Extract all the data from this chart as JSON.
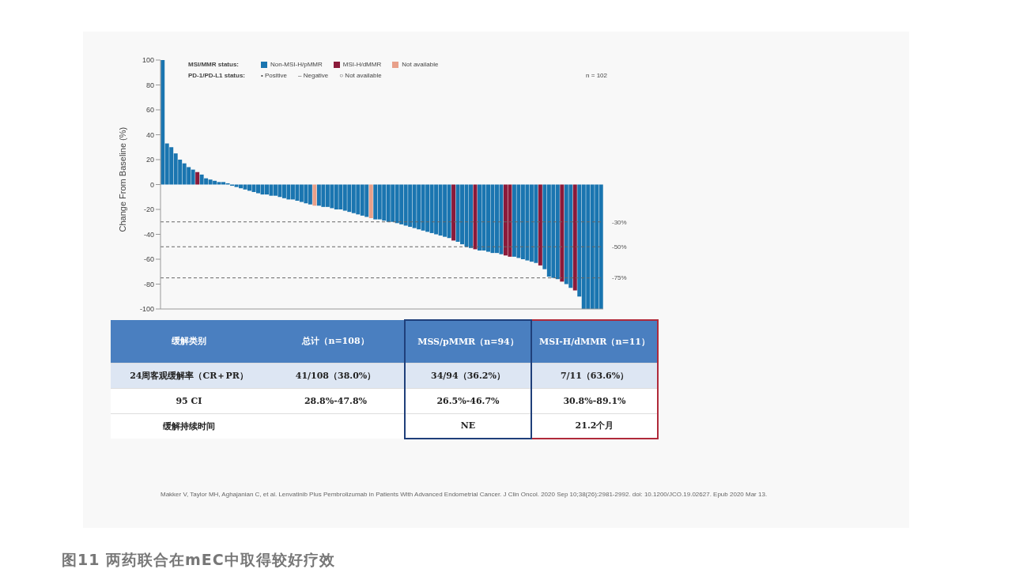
{
  "chart_data": [
    {
      "type": "bar",
      "ylabel": "Change From Baseline (%)",
      "legend_title": "MSI/MMR status:",
      "legend": "top",
      "stacked": true,
      "tick_labels": "y",
      "ylim": [
        -100,
        100
      ],
      "yticks": [
        -100,
        -80,
        -60,
        -40,
        -20,
        0,
        20,
        40,
        60,
        80,
        100
      ],
      "categories": [
        null,
        null,
        null,
        null,
        null,
        null,
        null,
        null,
        null,
        null,
        null,
        null,
        null,
        null,
        null,
        null,
        null,
        null,
        null,
        null,
        null,
        null,
        null,
        null,
        null,
        null,
        null,
        null,
        null,
        null,
        null,
        null,
        null,
        null,
        null,
        null,
        null,
        null,
        null,
        null,
        null,
        null,
        null,
        null,
        null,
        null,
        null,
        null,
        null,
        null,
        null,
        null,
        null,
        null,
        null,
        null,
        null,
        null,
        null,
        null,
        null,
        null,
        null,
        null,
        null,
        null,
        null,
        null,
        null,
        null,
        null,
        null,
        null,
        null,
        null,
        null,
        null,
        null,
        null,
        null,
        null,
        null,
        null,
        null,
        null,
        null,
        null,
        null,
        null,
        null,
        null,
        null,
        null,
        null,
        null,
        null,
        null,
        null,
        null,
        null,
        null,
        null
      ],
      "series": [
        {
          "name": "Non-MSI-H/pMMR",
          "color": "#1a75b0",
          "values": [
            100,
            33,
            30,
            25,
            20,
            17,
            14,
            12,
            null,
            8,
            5,
            4,
            3,
            2,
            2,
            1,
            -1,
            -2,
            -3,
            -4,
            -5,
            -6,
            -7,
            -8,
            -8,
            -9,
            -9,
            -10,
            -11,
            -12,
            -12,
            -13,
            -14,
            -15,
            -16,
            null,
            -17,
            -18,
            -18,
            -19,
            -20,
            -20,
            -21,
            -22,
            -23,
            -24,
            -25,
            -26,
            null,
            -28,
            -28,
            -29,
            -30,
            -30,
            -31,
            -32,
            -33,
            -34,
            -35,
            -36,
            -37,
            -38,
            -39,
            -40,
            -41,
            -42,
            -43,
            null,
            -46,
            -48,
            -50,
            -51,
            null,
            -53,
            -53,
            -54,
            -55,
            -55,
            -56,
            null,
            null,
            -58,
            -59,
            -60,
            -61,
            -62,
            -63,
            null,
            -68,
            -74,
            -75,
            -76,
            null,
            -80,
            -83,
            null,
            -90,
            -100,
            -100,
            -100,
            -100,
            -100
          ]
        },
        {
          "name": "MSI-H/dMMR",
          "color": "#8b1a3a",
          "values": [
            null,
            null,
            null,
            null,
            null,
            null,
            null,
            null,
            10,
            null,
            null,
            null,
            null,
            null,
            null,
            null,
            null,
            null,
            null,
            null,
            null,
            null,
            null,
            null,
            null,
            null,
            null,
            null,
            null,
            null,
            null,
            null,
            null,
            null,
            null,
            null,
            null,
            null,
            null,
            null,
            null,
            null,
            null,
            null,
            null,
            null,
            null,
            null,
            null,
            null,
            null,
            null,
            null,
            null,
            null,
            null,
            null,
            null,
            null,
            null,
            null,
            null,
            null,
            null,
            null,
            null,
            null,
            -45,
            null,
            null,
            null,
            null,
            -52,
            null,
            null,
            null,
            null,
            null,
            null,
            -57,
            -58,
            null,
            null,
            null,
            null,
            null,
            null,
            -65,
            null,
            null,
            null,
            null,
            -78,
            null,
            null,
            -85,
            null,
            null,
            null,
            null,
            null,
            null
          ]
        },
        {
          "name": "Not available",
          "color": "#e8a08a",
          "values": [
            null,
            null,
            null,
            null,
            null,
            null,
            null,
            null,
            null,
            null,
            null,
            null,
            null,
            null,
            null,
            null,
            null,
            null,
            null,
            null,
            null,
            null,
            null,
            null,
            null,
            null,
            null,
            null,
            null,
            null,
            null,
            null,
            null,
            null,
            null,
            -17,
            null,
            null,
            null,
            null,
            null,
            null,
            null,
            null,
            null,
            null,
            null,
            null,
            -27,
            null,
            null,
            null,
            null,
            null,
            null,
            null,
            null,
            null,
            null,
            null,
            null,
            null,
            null,
            null,
            null,
            null,
            null,
            null,
            null,
            null,
            null,
            null,
            null,
            null,
            null,
            null,
            null,
            null,
            null,
            null,
            null,
            null,
            null,
            null,
            null,
            null,
            null,
            null,
            null,
            null,
            null,
            null,
            null,
            null,
            null,
            null,
            null,
            null,
            null,
            null,
            null,
            null
          ]
        }
      ],
      "ref_lines": [
        {
          "axis": "y",
          "value": -30,
          "label": "-30%",
          "line_style": "dashed"
        },
        {
          "axis": "y",
          "value": -50,
          "label": "-50%",
          "line_style": "dashed"
        },
        {
          "axis": "y",
          "value": -75,
          "label": "-75%",
          "line_style": "dashed"
        }
      ],
      "annotations": [
        "PD-1/PD-L1 status:",
        "• Positive",
        "– Negative",
        "○ Not available",
        "n = 102"
      ]
    },
    {
      "type": "other",
      "categories": [
        "缓解类别",
        "总计（n=108）",
        "MSS/pMMR（n=94）",
        "MSI-H/dMMR（n=11）"
      ],
      "y_categories": [
        "24周客观缓解率（CR＋PR）",
        "95 CI",
        "缓解持续时间"
      ],
      "cell_labels": [
        [
          "41/108（38.0%）",
          "34/94（36.2%）",
          "7/11（63.6%）"
        ],
        [
          "28.8%-47.8%",
          "26.5%-46.7%",
          "30.8%-89.1%"
        ],
        [
          null,
          "NE",
          "21.2个月"
        ]
      ],
      "annotations": [
        "Makker V, Taylor MH, Aghajanian C, et al. Lenvatinib Plus Pembrolizumab in Patients With Advanced Endometrial Cancer. J Clin Oncol. 2020 Sep 10;38(26):2981-2992. doi: 10.1200/JCO.19.02627. Epub 2020 Mar 13.",
        "图11 两药联合在mEC中取得较好疗效"
      ]
    }
  ]
}
